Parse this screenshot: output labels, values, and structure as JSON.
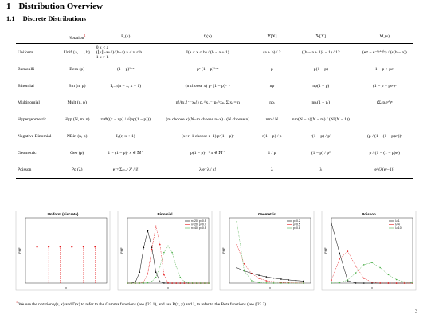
{
  "section": {
    "number": "1",
    "title": "Distribution Overview"
  },
  "subsection": {
    "number": "1.1",
    "title": "Discrete Distributions"
  },
  "table": {
    "header": [
      "Notation",
      "Fₓ(x)",
      "fₓ(x)",
      "𝔼[X]",
      "𝕍[X]",
      "Mₓ(s)"
    ],
    "footnote_mark": "1",
    "rows": [
      {
        "name": "Uniform",
        "notation": "Unif {a, …, b}",
        "F": [
          "0      x < a",
          "(⌊x⌋−a+1)/(b−a)   a ≤ x ≤ b",
          "1      x > b"
        ],
        "f": "I(a < x < b) / (b − a + 1)",
        "E": "(a + b) / 2",
        "V": "((b − a + 1)² − 1) / 12",
        "M": "(eᵃˢ − e⁻⁽ᵇ⁺¹⁾ˢ) / (s(b − a))"
      },
      {
        "name": "Bernoulli",
        "notation": "Bern (p)",
        "F": "(1 − p)¹⁻ˣ",
        "f": "pˣ (1 − p)¹⁻ˣ",
        "E": "p",
        "V": "p(1 − p)",
        "M": "1 − p + peˢ"
      },
      {
        "name": "Binomial",
        "notation": "Bin (n, p)",
        "F": "I₁₋ₚ(n − x, x + 1)",
        "f": "(n choose x) pˣ (1 − p)ⁿ⁻ˣ",
        "E": "np",
        "V": "np(1 − p)",
        "M": "(1 − p + peˢ)ⁿ"
      },
      {
        "name": "Multinomial",
        "notation": "Mult (n, p)",
        "f": "n!/(x₁!⋯xₖ!) p₁^x₁⋯pₖ^xₖ,  Σ xᵢ = n",
        "E": "npᵢ",
        "V": "npᵢ(1 − pᵢ)",
        "M": "(Σᵢ pᵢeˢⁱ)ⁿ"
      },
      {
        "name": "Hypergeometric",
        "notation": "Hyp (N, m, n)",
        "F": "≈ Φ((x − np) / √(np(1 − p)))",
        "f": "(m choose x)(N−m choose n−x) / (N choose n)",
        "E": "nm / N",
        "V": "nm(N − n)(N − m) / (N²(N − 1))"
      },
      {
        "name": "Negative Binomial",
        "notation": "NBin (n, p)",
        "F": "Iₚ(r, x + 1)",
        "f": "(x+r−1 choose r−1) pʳ(1 − p)ˣ",
        "E": "r(1 − p) / p",
        "V": "r(1 − p) / p²",
        "M": "(p / (1 − (1 − p)eˢ))ʳ"
      },
      {
        "name": "Geometric",
        "notation": "Geo (p)",
        "F": "1 − (1 − p)ˣ   x ∈ ℕ⁺",
        "f": "p(1 − p)ˣ⁻¹   x ∈ ℕ⁺",
        "E": "1 / p",
        "V": "(1 − p) / p²",
        "M": "p / (1 − (1 − p)eˢ)"
      },
      {
        "name": "Poisson",
        "notation": "Po (λ)",
        "F": "e⁻ᵞ Σᵢ₌₀ˣ λⁱ / i!",
        "f": "λˣe⁻λ / x!",
        "E": "λ",
        "V": "λ",
        "M": "e^(λ(eˢ−1))"
      }
    ]
  },
  "plots": [
    {
      "title": "Uniform (discrete)",
      "style": "stem",
      "xlabel": "x",
      "ylabel": "PMF",
      "xlim": [
        0,
        7
      ],
      "ylim": [
        0,
        0.3
      ],
      "x": [
        1,
        2,
        3,
        4,
        5,
        6
      ],
      "series": [
        {
          "color": "#e41a1c",
          "values": [
            0.167,
            0.167,
            0.167,
            0.167,
            0.167,
            0.167
          ]
        }
      ]
    },
    {
      "title": "Binomial",
      "style": "line",
      "xlabel": "x",
      "ylabel": "PMF",
      "xlim": [
        0,
        40
      ],
      "ylim": [
        0,
        0.22
      ],
      "x": [
        0,
        2,
        4,
        6,
        8,
        10,
        12,
        14,
        16,
        18,
        20,
        22,
        24,
        26,
        28,
        30,
        32,
        34,
        36,
        38,
        40
      ],
      "series": [
        {
          "name": "n=20, p=0.5",
          "color": "#000000",
          "values": [
            0,
            0.0002,
            0.0046,
            0.037,
            0.12,
            0.176,
            0.12,
            0.037,
            0.0046,
            0.0002,
            0,
            0,
            0,
            0,
            0,
            0,
            0,
            0,
            0,
            0,
            0
          ]
        },
        {
          "name": "n=20, p=0.7",
          "color": "#e41a1c",
          "values": [
            0,
            0,
            0,
            0.0002,
            0.0039,
            0.031,
            0.114,
            0.192,
            0.13,
            0.028,
            0.0008,
            0,
            0,
            0,
            0,
            0,
            0,
            0,
            0,
            0,
            0
          ]
        },
        {
          "name": "n=40, p=0.5",
          "color": "#4daf4a",
          "values": [
            0,
            0,
            0,
            0,
            0.0001,
            0.0008,
            0.0051,
            0.02,
            0.057,
            0.103,
            0.125,
            0.103,
            0.057,
            0.02,
            0.0051,
            0.0008,
            0.0001,
            0,
            0,
            0,
            0
          ]
        }
      ]
    },
    {
      "title": "Geometric",
      "style": "line",
      "xlabel": "x",
      "ylabel": "PMF",
      "xlim": [
        0,
        11
      ],
      "ylim": [
        0,
        0.85
      ],
      "x": [
        1,
        2,
        3,
        4,
        5,
        6,
        7,
        8,
        9,
        10
      ],
      "series": [
        {
          "name": "p=0.2",
          "color": "#000000",
          "values": [
            0.2,
            0.16,
            0.128,
            0.102,
            0.082,
            0.066,
            0.052,
            0.042,
            0.034,
            0.027
          ]
        },
        {
          "name": "p=0.5",
          "color": "#e41a1c",
          "values": [
            0.5,
            0.25,
            0.125,
            0.0625,
            0.031,
            0.016,
            0.008,
            0.004,
            0.002,
            0.001
          ]
        },
        {
          "name": "p=0.8",
          "color": "#4daf4a",
          "values": [
            0.8,
            0.16,
            0.032,
            0.0064,
            0.0013,
            0.0003,
            0.0001,
            0,
            0,
            0
          ]
        }
      ]
    },
    {
      "title": "Poisson",
      "style": "line",
      "xlabel": "x",
      "ylabel": "PMF",
      "xlim": [
        0,
        20
      ],
      "ylim": [
        0,
        0.4
      ],
      "x": [
        0,
        2,
        4,
        6,
        8,
        10,
        12,
        14,
        16,
        18,
        20
      ],
      "series": [
        {
          "name": "λ=1",
          "color": "#000000",
          "values": [
            0.368,
            0.184,
            0.015,
            0.0005,
            0,
            0,
            0,
            0,
            0,
            0,
            0
          ]
        },
        {
          "name": "λ=4",
          "color": "#e41a1c",
          "values": [
            0.018,
            0.147,
            0.195,
            0.104,
            0.03,
            0.005,
            0.0006,
            0.0001,
            0,
            0,
            0
          ]
        },
        {
          "name": "λ=10",
          "color": "#4daf4a",
          "values": [
            0,
            0.002,
            0.019,
            0.063,
            0.113,
            0.125,
            0.095,
            0.052,
            0.022,
            0.007,
            0.002
          ]
        }
      ]
    }
  ],
  "footnote": {
    "mark": "1",
    "text": "We use the notation γ(s, x) and Γ(x) to refer to the Gamma functions (see §22.1), and use B(x, y) and Iₓ to refer to the Beta functions (see §22.2)."
  },
  "page_number": "3"
}
